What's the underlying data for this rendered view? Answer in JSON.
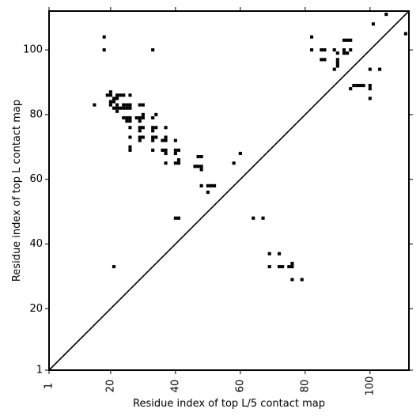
{
  "chart_data": {
    "type": "scatter",
    "title": "",
    "xlabel": "Residue index of top L/5 contact map",
    "ylabel": "Residue index of top L contact map",
    "xlim": [
      1,
      112
    ],
    "ylim": [
      1,
      112
    ],
    "x_ticks": [
      1,
      20,
      40,
      60,
      80,
      100
    ],
    "y_ticks": [
      1,
      20,
      40,
      60,
      80,
      100
    ],
    "x_tick_labels": [
      "1",
      "20",
      "40",
      "60",
      "80",
      "100"
    ],
    "y_tick_labels": [
      "1",
      "20",
      "40",
      "60",
      "80",
      "100"
    ],
    "x_tick_rotation": -90,
    "grid": false,
    "diagonal_line": true,
    "marker_color": "#000000",
    "points": [
      [
        18,
        104
      ],
      [
        18,
        100
      ],
      [
        33,
        100
      ],
      [
        15,
        83
      ],
      [
        19,
        86
      ],
      [
        20,
        86
      ],
      [
        20,
        87
      ],
      [
        21,
        85
      ],
      [
        22,
        86
      ],
      [
        23,
        86
      ],
      [
        24,
        86
      ],
      [
        20,
        84
      ],
      [
        20,
        83
      ],
      [
        21,
        82
      ],
      [
        22,
        83
      ],
      [
        22,
        82
      ],
      [
        22,
        81
      ],
      [
        23,
        82
      ],
      [
        24,
        83
      ],
      [
        24,
        82
      ],
      [
        25,
        83
      ],
      [
        25,
        82
      ],
      [
        26,
        83
      ],
      [
        26,
        82
      ],
      [
        26,
        86
      ],
      [
        21,
        84
      ],
      [
        22,
        85
      ],
      [
        24,
        79
      ],
      [
        25,
        79
      ],
      [
        25,
        78
      ],
      [
        26,
        79
      ],
      [
        26,
        78
      ],
      [
        26,
        76
      ],
      [
        26,
        73
      ],
      [
        26,
        70
      ],
      [
        26,
        69
      ],
      [
        28,
        79
      ],
      [
        29,
        79
      ],
      [
        29,
        78
      ],
      [
        29,
        76
      ],
      [
        29,
        75
      ],
      [
        29,
        73
      ],
      [
        29,
        72
      ],
      [
        30,
        80
      ],
      [
        30,
        79
      ],
      [
        30,
        76
      ],
      [
        30,
        73
      ],
      [
        29,
        83
      ],
      [
        30,
        83
      ],
      [
        33,
        79
      ],
      [
        33,
        76
      ],
      [
        33,
        75
      ],
      [
        33,
        73
      ],
      [
        33,
        72
      ],
      [
        33,
        69
      ],
      [
        34,
        80
      ],
      [
        34,
        76
      ],
      [
        34,
        73
      ],
      [
        36,
        72
      ],
      [
        36,
        69
      ],
      [
        37,
        76
      ],
      [
        37,
        73
      ],
      [
        37,
        72
      ],
      [
        37,
        69
      ],
      [
        37,
        68
      ],
      [
        37,
        65
      ],
      [
        40,
        72
      ],
      [
        40,
        69
      ],
      [
        40,
        68
      ],
      [
        40,
        65
      ],
      [
        41,
        69
      ],
      [
        41,
        66
      ],
      [
        41,
        65
      ],
      [
        40,
        48
      ],
      [
        41,
        48
      ],
      [
        21,
        33
      ],
      [
        46,
        64
      ],
      [
        47,
        67
      ],
      [
        47,
        64
      ],
      [
        48,
        67
      ],
      [
        48,
        64
      ],
      [
        48,
        63
      ],
      [
        48,
        58
      ],
      [
        50,
        58
      ],
      [
        51,
        58
      ],
      [
        52,
        58
      ],
      [
        50,
        56
      ],
      [
        58,
        65
      ],
      [
        60,
        68
      ],
      [
        64,
        48
      ],
      [
        67,
        48
      ],
      [
        69,
        37
      ],
      [
        72,
        37
      ],
      [
        69,
        33
      ],
      [
        72,
        33
      ],
      [
        73,
        33
      ],
      [
        75,
        33
      ],
      [
        76,
        34
      ],
      [
        76,
        33
      ],
      [
        76,
        29
      ],
      [
        79,
        29
      ],
      [
        82,
        104
      ],
      [
        82,
        100
      ],
      [
        85,
        100
      ],
      [
        86,
        100
      ],
      [
        85,
        97
      ],
      [
        86,
        97
      ],
      [
        89,
        100
      ],
      [
        90,
        99
      ],
      [
        90,
        97
      ],
      [
        90,
        96
      ],
      [
        90,
        95
      ],
      [
        89,
        94
      ],
      [
        92,
        103
      ],
      [
        93,
        103
      ],
      [
        94,
        103
      ],
      [
        92,
        100
      ],
      [
        92,
        99
      ],
      [
        93,
        99
      ],
      [
        94,
        100
      ],
      [
        94,
        88
      ],
      [
        95,
        89
      ],
      [
        96,
        89
      ],
      [
        97,
        89
      ],
      [
        98,
        89
      ],
      [
        100,
        94
      ],
      [
        100,
        89
      ],
      [
        100,
        88
      ],
      [
        100,
        85
      ],
      [
        103,
        94
      ],
      [
        101,
        108
      ],
      [
        105,
        111
      ],
      [
        111,
        105
      ]
    ]
  }
}
